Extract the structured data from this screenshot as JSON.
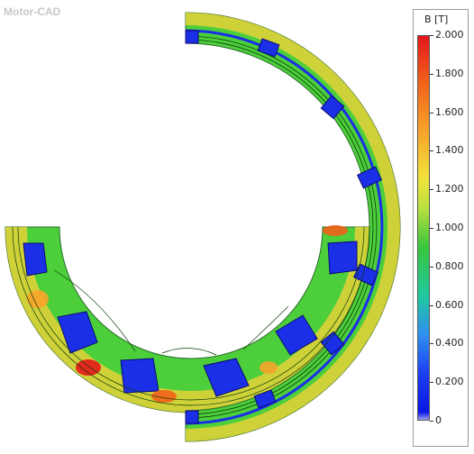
{
  "app": {
    "watermark": "Motor-CAD"
  },
  "legend": {
    "title": "B [T]",
    "ticks": [
      "2.000",
      "1.800",
      "1.600",
      "1.400",
      "1.200",
      "1.000",
      "0.800",
      "0.600",
      "0.400",
      "0.200",
      "0"
    ]
  },
  "colors": {
    "low": "#0b17e5",
    "mid_low": "#20c8a2",
    "mid": "#39c63c",
    "mid_high": "#f2e23a",
    "high": "#e3161b"
  }
}
